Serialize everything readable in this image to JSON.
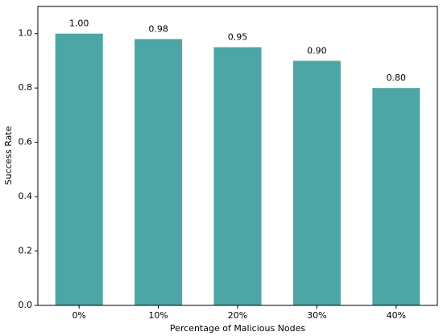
{
  "chart_data": {
    "type": "bar",
    "x_label": "Percentage of Malicious Nodes",
    "y_label": "Success Rate",
    "categories": [
      "0%",
      "10%",
      "20%",
      "30%",
      "40%"
    ],
    "values": [
      1.0,
      0.98,
      0.95,
      0.9,
      0.8
    ],
    "value_labels": [
      "1.00",
      "0.98",
      "0.95",
      "0.90",
      "0.80"
    ],
    "color": "#4ca6a6",
    "ylim": [
      0,
      1.1
    ],
    "yticks": [
      {
        "value": 0,
        "label": "0.0"
      },
      0.2,
      0.4,
      0.6,
      0.8,
      {
        "value": 1,
        "label": "1.0"
      }
    ],
    "grid": false
  }
}
